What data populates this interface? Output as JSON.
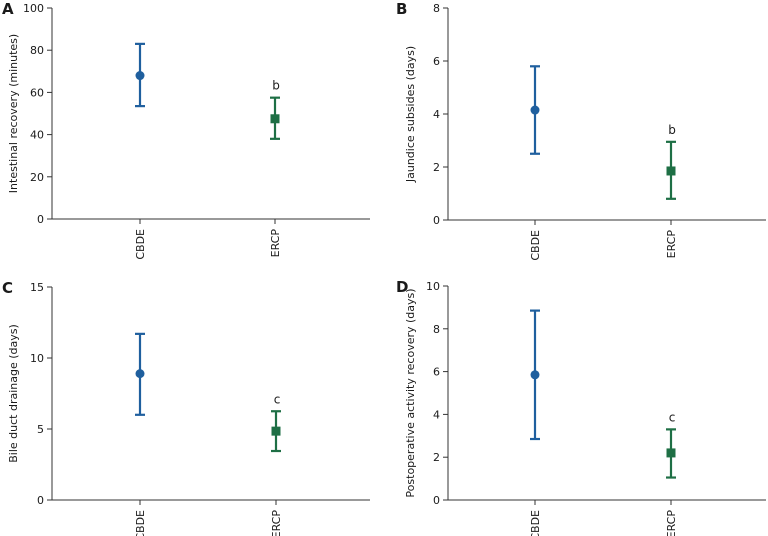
{
  "chart_data": [
    {
      "type": "scatter",
      "panel": "A",
      "ylabel": "Intestinal recovery (minutes)",
      "ylim": [
        0,
        100
      ],
      "yticks": [
        0,
        20,
        40,
        60,
        80,
        100
      ],
      "categories": [
        "CBDE",
        "ERCP"
      ],
      "points": [
        {
          "group": "CBDE",
          "mean": 68,
          "low": 53.5,
          "high": 83,
          "marker": "circle",
          "color": "#1f5f9e",
          "annotation": ""
        },
        {
          "group": "ERCP",
          "mean": 47.5,
          "low": 38,
          "high": 57.5,
          "marker": "square",
          "color": "#1e6f45",
          "annotation": "b"
        }
      ]
    },
    {
      "type": "scatter",
      "panel": "B",
      "ylabel": "Jaundice subsides (days)",
      "ylim": [
        0,
        8
      ],
      "yticks": [
        0,
        2,
        4,
        6,
        8
      ],
      "categories": [
        "CBDE",
        "ERCP"
      ],
      "points": [
        {
          "group": "CBDE",
          "mean": 4.15,
          "low": 2.5,
          "high": 5.8,
          "marker": "circle",
          "color": "#1f5f9e",
          "annotation": ""
        },
        {
          "group": "ERCP",
          "mean": 1.85,
          "low": 0.8,
          "high": 2.95,
          "marker": "square",
          "color": "#1e6f45",
          "annotation": "b"
        }
      ]
    },
    {
      "type": "scatter",
      "panel": "C",
      "ylabel": "Bile duct drainage (days)",
      "ylim": [
        0,
        15
      ],
      "yticks": [
        0,
        5,
        10,
        15
      ],
      "categories": [
        "CBDE",
        "ERCP"
      ],
      "points": [
        {
          "group": "CBDE",
          "mean": 8.9,
          "low": 6.0,
          "high": 11.7,
          "marker": "circle",
          "color": "#1f5f9e",
          "annotation": ""
        },
        {
          "group": "ERCP",
          "mean": 4.85,
          "low": 3.45,
          "high": 6.25,
          "marker": "square",
          "color": "#1e6f45",
          "annotation": "c"
        }
      ]
    },
    {
      "type": "scatter",
      "panel": "D",
      "ylabel": "Postoperative activity recovery (days)",
      "ylim": [
        0,
        10
      ],
      "yticks": [
        0,
        2,
        4,
        6,
        8,
        10
      ],
      "categories": [
        "CBDE",
        "ERCP"
      ],
      "points": [
        {
          "group": "CBDE",
          "mean": 5.85,
          "low": 2.85,
          "high": 8.85,
          "marker": "circle",
          "color": "#1f5f9e",
          "annotation": ""
        },
        {
          "group": "ERCP",
          "mean": 2.2,
          "low": 1.05,
          "high": 3.3,
          "marker": "square",
          "color": "#1e6f45",
          "annotation": "c"
        }
      ]
    }
  ]
}
